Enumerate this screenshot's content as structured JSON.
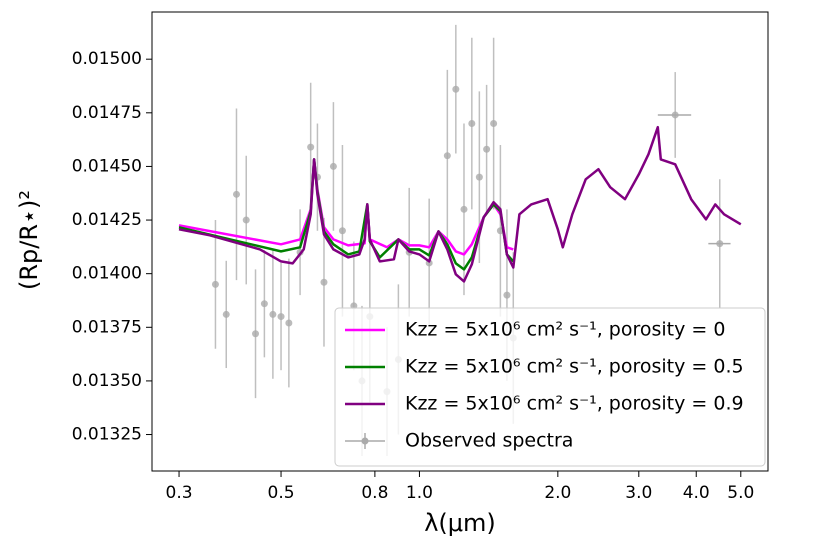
{
  "chart_data": {
    "type": "line",
    "xlabel": "λ(μm)",
    "ylabel": "(Rp/R⋆)²",
    "xscale": "log",
    "xlim": [
      0.262,
      5.73
    ],
    "ylim": [
      0.01308,
      0.01522
    ],
    "xticks": [
      0.3,
      0.5,
      0.8,
      {
        "value": 1,
        "label": "1.0"
      },
      {
        "value": 2,
        "label": "2.0"
      },
      {
        "value": 3,
        "label": "3.0"
      },
      {
        "value": 4,
        "label": "4.0"
      },
      {
        "value": 5,
        "label": "5.0"
      }
    ],
    "yticks": [
      0.01325,
      {
        "value": 0.0135,
        "label": "0.01350"
      },
      0.01375,
      {
        "value": 0.014,
        "label": "0.01400"
      },
      0.01425,
      {
        "value": 0.0145,
        "label": "0.01450"
      },
      0.01475,
      {
        "value": 0.015,
        "label": "0.01500"
      }
    ],
    "legend": "lower right",
    "series": [
      {
        "name": "Kzz = 5x10⁶ cm² s⁻¹, porosity = 0",
        "color": "#ff00ff",
        "x": [
          0.3,
          0.5,
          0.55,
          0.58,
          0.59,
          0.6,
          0.62,
          0.65,
          0.7,
          0.76,
          0.77,
          0.78,
          0.85,
          0.9,
          0.95,
          1.0,
          1.05,
          1.1,
          1.15,
          1.2,
          1.25,
          1.3,
          1.38,
          1.45,
          1.5,
          1.55,
          1.6
        ],
        "values": [
          0.014225,
          0.014137,
          0.01416,
          0.0143,
          0.014533,
          0.014393,
          0.014216,
          0.01416,
          0.014132,
          0.014141,
          0.014323,
          0.01416,
          0.014123,
          0.01416,
          0.014132,
          0.014132,
          0.014123,
          0.014197,
          0.01416,
          0.014104,
          0.01409,
          0.014137,
          0.014263,
          0.014323,
          0.014277,
          0.014123,
          0.014113
        ]
      },
      {
        "name": "Kzz = 5x10⁶ cm² s⁻¹, porosity = 0.5",
        "color": "#008000",
        "x": [
          0.3,
          0.5,
          0.55,
          0.58,
          0.59,
          0.6,
          0.62,
          0.65,
          0.7,
          0.74,
          0.77,
          0.78,
          0.82,
          0.9,
          0.95,
          1.0,
          1.05,
          1.1,
          1.15,
          1.2,
          1.25,
          1.3,
          1.38,
          1.45,
          1.5,
          1.55,
          1.6
        ],
        "values": [
          0.014216,
          0.014104,
          0.014123,
          0.014291,
          0.014533,
          0.014384,
          0.014197,
          0.014137,
          0.01409,
          0.014104,
          0.014323,
          0.014151,
          0.014076,
          0.01416,
          0.014113,
          0.014113,
          0.014085,
          0.014197,
          0.014137,
          0.014048,
          0.01402,
          0.014076,
          0.014263,
          0.014323,
          0.014291,
          0.01409,
          0.014057
        ]
      },
      {
        "name": "Kzz = 5x10⁶ cm² s⁻¹, porosity = 0.9",
        "color": "#800080",
        "x": [
          0.3,
          0.35,
          0.45,
          0.5,
          0.53,
          0.56,
          0.58,
          0.59,
          0.6,
          0.62,
          0.65,
          0.7,
          0.74,
          0.76,
          0.77,
          0.78,
          0.82,
          0.88,
          0.9,
          0.95,
          1.0,
          1.05,
          1.1,
          1.15,
          1.2,
          1.25,
          1.3,
          1.38,
          1.45,
          1.5,
          1.55,
          1.6,
          1.65,
          1.75,
          1.9,
          2.0,
          2.05,
          2.15,
          2.3,
          2.45,
          2.6,
          2.8,
          3.0,
          3.15,
          3.3,
          3.35,
          3.6,
          3.9,
          4.2,
          4.4,
          4.6,
          5.0
        ],
        "values": [
          0.014207,
          0.014179,
          0.014113,
          0.014057,
          0.014048,
          0.014113,
          0.014277,
          0.014533,
          0.01437,
          0.014183,
          0.014113,
          0.014076,
          0.01409,
          0.01416,
          0.014323,
          0.01416,
          0.014057,
          0.014067,
          0.01416,
          0.014104,
          0.01409,
          0.014057,
          0.014197,
          0.014113,
          0.013997,
          0.013964,
          0.014043,
          0.014263,
          0.014333,
          0.0143,
          0.01409,
          0.014029,
          0.014277,
          0.014323,
          0.014347,
          0.014207,
          0.014123,
          0.014277,
          0.01444,
          0.014487,
          0.014403,
          0.014347,
          0.014463,
          0.014557,
          0.014683,
          0.014533,
          0.01451,
          0.014347,
          0.014253,
          0.014323,
          0.014277,
          0.01423
        ]
      }
    ],
    "observed": {
      "name": "Observed spectra",
      "color": "#aaaaaa",
      "x": [
        0.36,
        0.38,
        0.4,
        0.42,
        0.44,
        0.46,
        0.48,
        0.5,
        0.52,
        0.55,
        0.58,
        0.6,
        0.62,
        0.65,
        0.68,
        0.72,
        0.75,
        0.78,
        0.85,
        0.9,
        0.95,
        1.05,
        1.15,
        1.2,
        1.25,
        1.3,
        1.35,
        1.4,
        1.45,
        1.5,
        1.55,
        1.6,
        3.6,
        4.5
      ],
      "values": [
        0.01395,
        0.01381,
        0.01437,
        0.01425,
        0.01372,
        0.01386,
        0.01381,
        0.0138,
        0.01377,
        0.0141,
        0.01459,
        0.01445,
        0.01396,
        0.0145,
        0.0142,
        0.01385,
        0.0135,
        0.0138,
        0.01345,
        0.0136,
        0.0141,
        0.01405,
        0.01455,
        0.01486,
        0.0143,
        0.0147,
        0.01445,
        0.01458,
        0.0147,
        0.0142,
        0.0139,
        0.0137,
        0.01474,
        0.01414
      ],
      "yerr": [
        0.0003,
        0.00025,
        0.0004,
        0.0003,
        0.0003,
        0.00025,
        0.0003,
        0.00025,
        0.0003,
        0.0002,
        0.0003,
        0.00025,
        0.0003,
        0.0003,
        0.0004,
        0.0003,
        0.00035,
        0.0004,
        0.0003,
        0.00035,
        0.0003,
        0.0003,
        0.0004,
        0.0003,
        0.0004,
        0.0004,
        0.0004,
        0.0003,
        0.0004,
        0.0004,
        0.0004,
        0.0004,
        0.0002,
        0.0003
      ],
      "xerr": [
        0,
        0,
        0,
        0,
        0,
        0,
        0,
        0,
        0,
        0,
        0,
        0,
        0,
        0,
        0,
        0,
        0,
        0,
        0,
        0,
        0,
        0,
        0,
        0,
        0,
        0,
        0,
        0,
        0,
        0,
        0,
        0,
        0.3,
        0.25
      ]
    }
  }
}
